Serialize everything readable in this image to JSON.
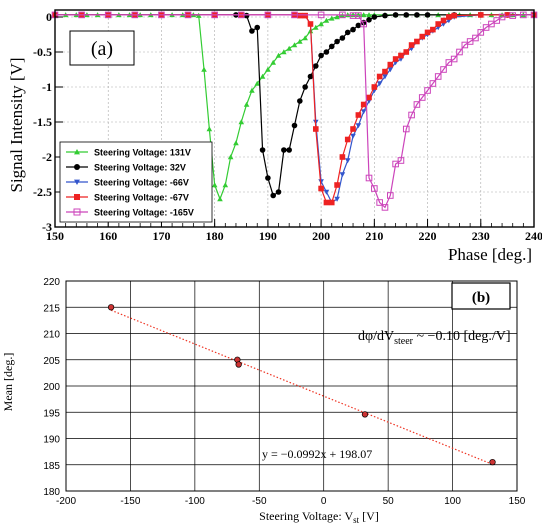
{
  "chart_data": [
    {
      "type": "line",
      "panel_label": "(a)",
      "xlabel": "Phase [deg.]",
      "ylabel": "Signal Intensity [V]",
      "xlim": [
        150,
        240
      ],
      "ylim": [
        -3,
        0.1
      ],
      "xticks": [
        150,
        160,
        170,
        180,
        190,
        200,
        210,
        220,
        230,
        240
      ],
      "yticks": [
        0,
        -0.5,
        -1,
        -1.5,
        -2,
        -2.5,
        -3
      ],
      "ytick_labels": [
        "0",
        "-0.5",
        "-1",
        "-1.5",
        "-2",
        "-2.5",
        "-3"
      ],
      "grid": true,
      "legend_position": "bottom-left",
      "series": [
        {
          "name": "Steering Voltage: 131V",
          "color": "#33cc33",
          "marker": "triangle-up",
          "x": [
            150,
            152,
            154,
            156,
            158,
            160,
            162,
            164,
            166,
            168,
            170,
            172,
            174,
            176,
            177,
            178,
            179,
            180,
            181,
            182,
            183,
            184,
            185,
            186,
            187,
            188,
            189,
            190,
            191,
            192,
            193,
            194,
            195,
            196,
            197,
            198,
            199,
            200,
            201,
            202,
            203,
            204,
            205,
            206,
            207,
            208,
            209,
            210,
            212,
            214,
            216,
            218,
            220,
            222,
            224,
            226,
            228,
            230,
            232,
            234,
            236,
            238,
            240
          ],
          "y": [
            0.03,
            0.03,
            0.03,
            0.03,
            0.03,
            0.03,
            0.03,
            0.03,
            0.03,
            0.03,
            0.03,
            0.03,
            0.03,
            0.03,
            0.02,
            -0.75,
            -1.6,
            -2.4,
            -2.6,
            -2.4,
            -2.0,
            -1.8,
            -1.5,
            -1.25,
            -1.05,
            -0.95,
            -0.85,
            -0.75,
            -0.65,
            -0.55,
            -0.5,
            -0.45,
            -0.4,
            -0.35,
            -0.3,
            -0.2,
            -0.15,
            -0.1,
            -0.05,
            -0.02,
            0.0,
            0.02,
            0.03,
            0.03,
            0.03,
            0.03,
            0.03,
            0.03,
            0.03,
            0.03,
            0.03,
            0.03,
            0.03,
            0.03,
            0.03,
            0.03,
            0.03,
            0.03,
            0.03,
            0.03,
            0.03,
            0.03,
            0.03
          ]
        },
        {
          "name": "Steering Voltage: 32V",
          "color": "#000000",
          "marker": "circle",
          "x": [
            150,
            155,
            160,
            165,
            170,
            175,
            180,
            184,
            186,
            187,
            188,
            189,
            190,
            191,
            192,
            193,
            194,
            195,
            196,
            197,
            198,
            199,
            200,
            201,
            202,
            203,
            204,
            205,
            206,
            207,
            208,
            209,
            210,
            212,
            214,
            216,
            218,
            220,
            225,
            230,
            235,
            240
          ],
          "y": [
            0.03,
            0.03,
            0.03,
            0.03,
            0.03,
            0.03,
            0.03,
            0.03,
            0.02,
            -0.2,
            -0.15,
            -1.9,
            -2.3,
            -2.55,
            -2.5,
            -1.9,
            -1.9,
            -1.55,
            -1.2,
            -1.0,
            -0.85,
            -0.7,
            -0.55,
            -0.5,
            -0.42,
            -0.35,
            -0.3,
            -0.22,
            -0.18,
            -0.12,
            -0.08,
            -0.04,
            0.0,
            0.02,
            0.03,
            0.03,
            0.03,
            0.03,
            0.03,
            0.03,
            0.03,
            0.03
          ]
        },
        {
          "name": "Steering Voltage: -66V",
          "color": "#3355cc",
          "marker": "triangle-down",
          "x": [
            150,
            155,
            160,
            165,
            170,
            175,
            180,
            185,
            190,
            195,
            196,
            197,
            198,
            199,
            200,
            201,
            202,
            203,
            204,
            205,
            206,
            207,
            208,
            209,
            210,
            211,
            212,
            213,
            214,
            215,
            216,
            217,
            218,
            219,
            220,
            221,
            222,
            223,
            224,
            225,
            230,
            235,
            240
          ],
          "y": [
            0.03,
            0.03,
            0.03,
            0.03,
            0.03,
            0.03,
            0.03,
            0.03,
            0.03,
            0.03,
            0.02,
            0.02,
            -0.1,
            -1.5,
            -2.35,
            -2.5,
            -2.65,
            -2.6,
            -2.25,
            -2.05,
            -1.7,
            -1.55,
            -1.35,
            -1.2,
            -1.05,
            -0.95,
            -0.85,
            -0.75,
            -0.65,
            -0.6,
            -0.5,
            -0.45,
            -0.35,
            -0.3,
            -0.25,
            -0.2,
            -0.15,
            -0.1,
            -0.05,
            0.0,
            0.03,
            0.03,
            0.03
          ]
        },
        {
          "name": "Steering Voltage: -67V",
          "color": "#ee2222",
          "marker": "square",
          "x": [
            150,
            155,
            160,
            165,
            170,
            175,
            180,
            185,
            190,
            195,
            196,
            197,
            198,
            199,
            200,
            201,
            202,
            203,
            204,
            205,
            206,
            207,
            208,
            209,
            210,
            211,
            212,
            213,
            214,
            215,
            216,
            217,
            218,
            219,
            220,
            221,
            222,
            223,
            224,
            225,
            230,
            235,
            240
          ],
          "y": [
            0.03,
            0.03,
            0.03,
            0.03,
            0.03,
            0.03,
            0.03,
            0.03,
            0.03,
            0.03,
            0.02,
            0.02,
            -0.1,
            -1.6,
            -2.45,
            -2.65,
            -2.65,
            -2.4,
            -2.0,
            -1.75,
            -1.6,
            -1.4,
            -1.25,
            -1.15,
            -1.0,
            -0.85,
            -0.78,
            -0.68,
            -0.6,
            -0.55,
            -0.5,
            -0.4,
            -0.35,
            -0.28,
            -0.22,
            -0.18,
            -0.1,
            -0.05,
            0.0,
            0.02,
            0.03,
            0.03,
            0.03
          ]
        },
        {
          "name": "Steering Voltage: -165V",
          "color": "#cc44bb",
          "marker": "square-open",
          "x": [
            150,
            155,
            160,
            165,
            170,
            175,
            180,
            185,
            190,
            195,
            200,
            204,
            206,
            207,
            208,
            209,
            210,
            211,
            212,
            213,
            214,
            215,
            216,
            217,
            218,
            219,
            220,
            221,
            222,
            223,
            224,
            225,
            226,
            227,
            228,
            229,
            230,
            231,
            232,
            233,
            234,
            236,
            238,
            240
          ],
          "y": [
            0.03,
            0.03,
            0.03,
            0.03,
            0.03,
            0.03,
            0.03,
            0.03,
            0.03,
            0.03,
            0.03,
            0.03,
            0.02,
            0.02,
            -0.1,
            -2.3,
            -2.45,
            -2.65,
            -2.72,
            -2.55,
            -2.1,
            -2.05,
            -1.6,
            -1.4,
            -1.25,
            -1.15,
            -1.05,
            -0.95,
            -0.85,
            -0.75,
            -0.65,
            -0.6,
            -0.5,
            -0.4,
            -0.35,
            -0.3,
            -0.22,
            -0.15,
            -0.1,
            -0.05,
            0.0,
            0.02,
            0.03,
            0.03
          ]
        }
      ]
    },
    {
      "type": "scatter",
      "panel_label": "(b)",
      "xlabel": "Steering Voltage: V",
      "xlabel_sub": "st",
      "xlabel_unit": " [V]",
      "ylabel": "Mean [deg.]",
      "xlim": [
        -200,
        150
      ],
      "ylim": [
        180,
        220
      ],
      "xticks": [
        -200,
        -150,
        -100,
        -50,
        0,
        50,
        100,
        150
      ],
      "yticks": [
        180,
        185,
        190,
        195,
        200,
        205,
        210,
        215,
        220
      ],
      "grid": true,
      "point_color": "#cc3333",
      "points": [
        {
          "x": -165,
          "y": 215.0
        },
        {
          "x": -67,
          "y": 205.0
        },
        {
          "x": -66,
          "y": 204.1
        },
        {
          "x": 32,
          "y": 194.6
        },
        {
          "x": 131,
          "y": 185.5
        }
      ],
      "fit": {
        "slope": -0.0992,
        "intercept": 198.07,
        "color": "#ee3322",
        "style": "dotted"
      },
      "fit_label": "y = −0.0992x + 198.07",
      "annotation_main": "dφ/dV",
      "annotation_sub": "steer",
      "annotation_tail": " ~ −0.10 [deg./V]"
    }
  ]
}
